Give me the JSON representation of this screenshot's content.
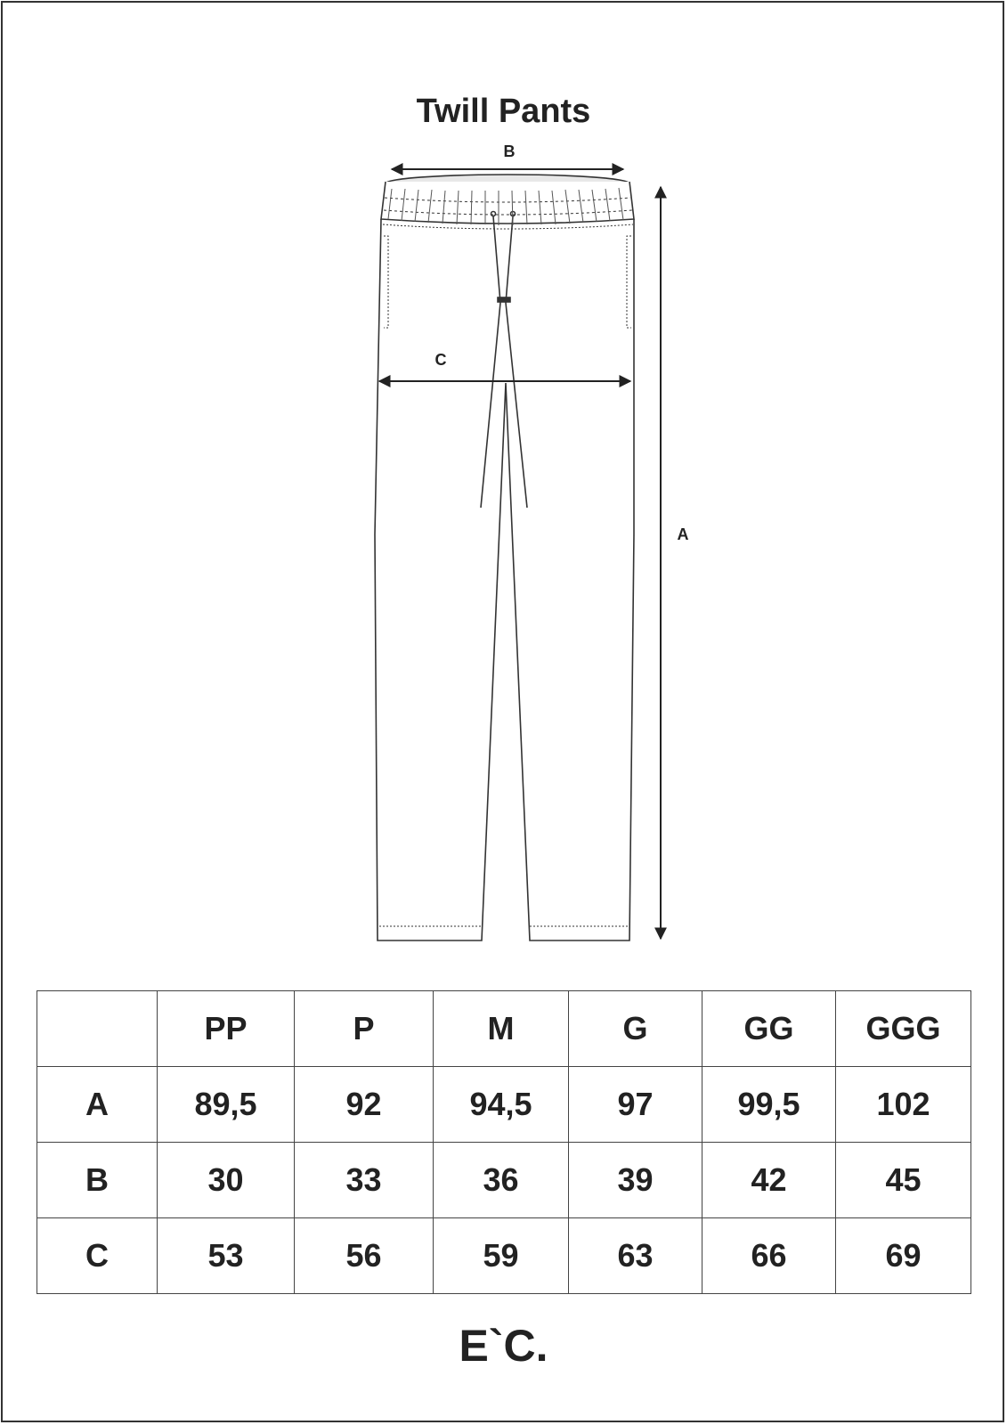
{
  "title": "Twill Pants",
  "dimension_labels": {
    "a": "A",
    "b": "B",
    "c": "C"
  },
  "table": {
    "headers": [
      "",
      "PP",
      "P",
      "M",
      "G",
      "GG",
      "GGG"
    ],
    "rows": [
      {
        "label": "A",
        "values": [
          "89,5",
          "92",
          "94,5",
          "97",
          "99,5",
          "102"
        ]
      },
      {
        "label": "B",
        "values": [
          "30",
          "33",
          "36",
          "39",
          "42",
          "45"
        ]
      },
      {
        "label": "C",
        "values": [
          "53",
          "56",
          "59",
          "63",
          "66",
          "69"
        ]
      }
    ]
  },
  "logo": "E`C."
}
